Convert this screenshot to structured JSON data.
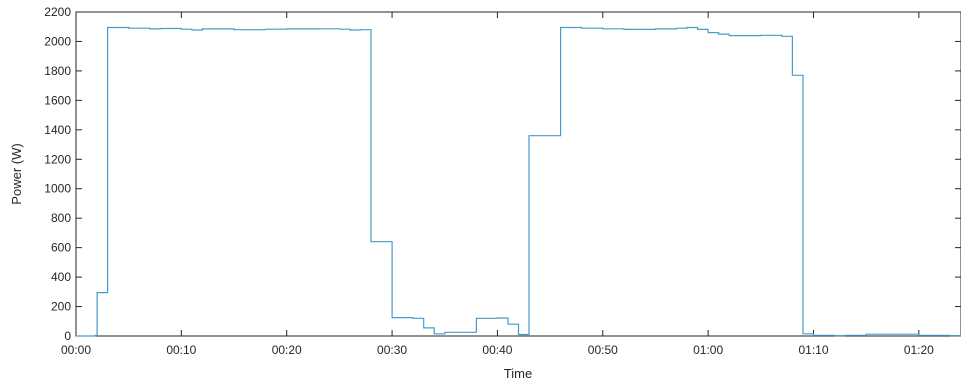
{
  "chart_data": {
    "type": "line",
    "step": true,
    "xlabel": "Time",
    "ylabel": "Power (W)",
    "xlim": [
      "00:00",
      "01:24"
    ],
    "ylim": [
      0,
      2200
    ],
    "grid": false,
    "box": true,
    "line_color": "#4a9bc8",
    "axis_color": "#262626",
    "x_ticks": [
      "00:00",
      "00:10",
      "00:20",
      "00:30",
      "00:40",
      "00:50",
      "01:00",
      "01:10",
      "01:20"
    ],
    "y_ticks": [
      0,
      200,
      400,
      600,
      800,
      1000,
      1200,
      1400,
      1600,
      1800,
      2000,
      2200
    ],
    "series": [
      {
        "x": [
          "00:00",
          "00:01:50",
          "00:02",
          "00:03",
          "00:05",
          "00:07",
          "00:08",
          "00:10",
          "00:11",
          "00:12",
          "00:15",
          "00:18",
          "00:20",
          "00:23",
          "00:25",
          "00:26",
          "00:27",
          "00:28",
          "00:30",
          "00:32",
          "00:33",
          "00:34",
          "00:35",
          "00:38",
          "00:40",
          "00:41",
          "00:42",
          "00:43",
          "00:46",
          "00:48",
          "00:50",
          "00:52",
          "00:55",
          "00:57",
          "00:58",
          "00:59",
          "01:00",
          "01:01",
          "01:02",
          "01:05",
          "01:07",
          "01:08",
          "01:09",
          "01:10",
          "01:12",
          "01:13",
          "01:14",
          "01:15",
          "01:20",
          "01:23"
        ],
        "values": [
          0,
          5,
          295,
          2095,
          2090,
          2085,
          2088,
          2083,
          2078,
          2085,
          2080,
          2083,
          2085,
          2086,
          2083,
          2078,
          2080,
          640,
          125,
          120,
          55,
          15,
          25,
          120,
          122,
          80,
          10,
          1360,
          2095,
          2090,
          2086,
          2082,
          2085,
          2090,
          2095,
          2082,
          2060,
          2050,
          2040,
          2042,
          2035,
          1770,
          15,
          5,
          3,
          5,
          5,
          12,
          5,
          3
        ]
      }
    ]
  }
}
